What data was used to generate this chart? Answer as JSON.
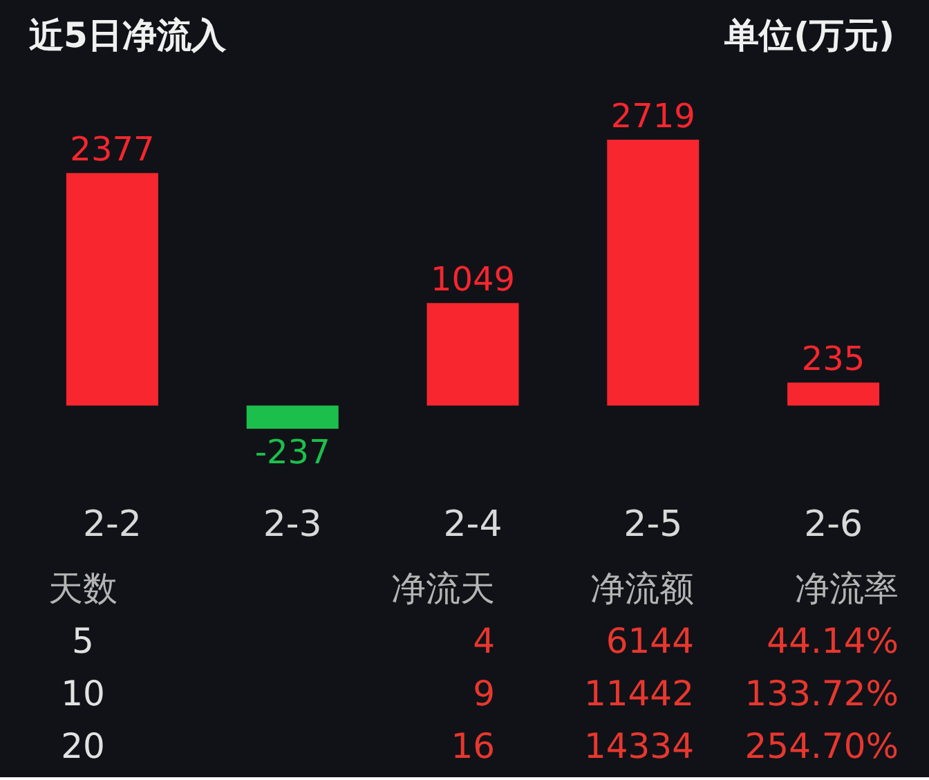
{
  "chart_data": [
    {
      "type": "bar",
      "title": "近5日净流入",
      "subtitle": "单位(万元)",
      "categories": [
        "2-2",
        "2-3",
        "2-4",
        "2-5",
        "2-6"
      ],
      "values": [
        2377,
        -237,
        1049,
        2719,
        235
      ],
      "colors": [
        "#f7262f",
        "#1dbf4c",
        "#f7262f",
        "#f7262f",
        "#f7262f"
      ],
      "data_labels": true,
      "tick_labels": "x"
    },
    {
      "type": "other",
      "annotations": [
        "天数",
        "净流天",
        "净流额",
        "净流率",
        "5",
        "4",
        "6144",
        "44.14%",
        "10",
        "9",
        "11442",
        "133.72%",
        "20",
        "16",
        "14334",
        "254.70%"
      ]
    }
  ]
}
